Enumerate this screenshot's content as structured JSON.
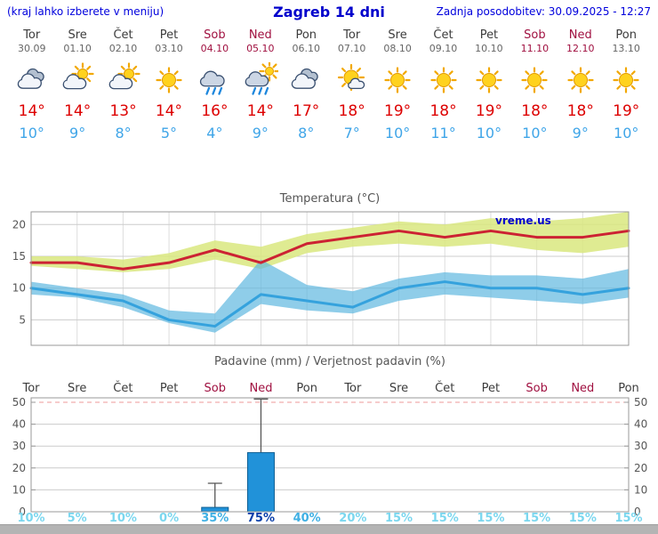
{
  "header": {
    "hint": "(kraj lahko izberete v meniju)",
    "title": "Zagreb 14 dni",
    "updated": "Zadnja posodobitev: 30.09.2025 - 12:27"
  },
  "days": [
    {
      "name": "Tor",
      "date": "30.09",
      "weekend": false,
      "icon": "cloudy",
      "tmax": "14°",
      "tmin": "10°"
    },
    {
      "name": "Sre",
      "date": "01.10",
      "weekend": false,
      "icon": "partly-cloudy",
      "tmax": "14°",
      "tmin": "9°"
    },
    {
      "name": "Čet",
      "date": "02.10",
      "weekend": false,
      "icon": "partly-cloudy",
      "tmax": "13°",
      "tmin": "8°"
    },
    {
      "name": "Pet",
      "date": "03.10",
      "weekend": false,
      "icon": "sunny",
      "tmax": "14°",
      "tmin": "5°"
    },
    {
      "name": "Sob",
      "date": "04.10",
      "weekend": true,
      "icon": "rain",
      "tmax": "16°",
      "tmin": "4°"
    },
    {
      "name": "Ned",
      "date": "05.10",
      "weekend": true,
      "icon": "rain-sun",
      "tmax": "14°",
      "tmin": "9°"
    },
    {
      "name": "Pon",
      "date": "06.10",
      "weekend": false,
      "icon": "cloudy",
      "tmax": "17°",
      "tmin": "8°"
    },
    {
      "name": "Tor",
      "date": "07.10",
      "weekend": false,
      "icon": "mostly-sunny",
      "tmax": "18°",
      "tmin": "7°"
    },
    {
      "name": "Sre",
      "date": "08.10",
      "weekend": false,
      "icon": "sunny",
      "tmax": "19°",
      "tmin": "10°"
    },
    {
      "name": "Čet",
      "date": "09.10",
      "weekend": false,
      "icon": "sunny",
      "tmax": "18°",
      "tmin": "11°"
    },
    {
      "name": "Pet",
      "date": "10.10",
      "weekend": false,
      "icon": "sunny",
      "tmax": "19°",
      "tmin": "10°"
    },
    {
      "name": "Sob",
      "date": "11.10",
      "weekend": true,
      "icon": "sunny",
      "tmax": "18°",
      "tmin": "10°"
    },
    {
      "name": "Ned",
      "date": "12.10",
      "weekend": true,
      "icon": "sunny",
      "tmax": "18°",
      "tmin": "9°"
    },
    {
      "name": "Pon",
      "date": "13.10",
      "weekend": false,
      "icon": "sunny",
      "tmax": "19°",
      "tmin": "10°"
    }
  ],
  "chart_data": [
    {
      "type": "line",
      "title": "Temperatura (°C)",
      "watermark": "vreme.us",
      "categories": [
        "Tor 30.09",
        "Sre 01.10",
        "Čet 02.10",
        "Pet 03.10",
        "Sob 04.10",
        "Ned 05.10",
        "Pon 06.10",
        "Tor 07.10",
        "Sre 08.10",
        "Čet 09.10",
        "Pet 10.10",
        "Sob 11.10",
        "Ned 12.10",
        "Pon 13.10"
      ],
      "ylim": [
        1,
        22
      ],
      "yticks": [
        5,
        10,
        15,
        20
      ],
      "series": [
        {
          "name": "max temperature",
          "color": "#cc2233",
          "values": [
            14,
            14,
            13,
            14,
            16,
            14,
            17,
            18,
            19,
            18,
            19,
            18,
            18,
            19
          ]
        },
        {
          "name": "min temperature",
          "color": "#35a2dd",
          "values": [
            10,
            9,
            8,
            5,
            4,
            9,
            8,
            7,
            10,
            11,
            10,
            10,
            9,
            10
          ]
        }
      ],
      "bands": [
        {
          "name": "max-range",
          "color": "#d9e87f",
          "opacity": 0.85,
          "upper": [
            15,
            15,
            14.5,
            15.5,
            17.5,
            16.5,
            18.5,
            19.5,
            20.5,
            20,
            21,
            20.5,
            21,
            22
          ],
          "lower": [
            13.5,
            13,
            12.5,
            13,
            14.5,
            13,
            15.5,
            16.5,
            17,
            16.5,
            17,
            16,
            15.5,
            16.5
          ]
        },
        {
          "name": "min-range",
          "color": "#5fb8e0",
          "opacity": 0.7,
          "upper": [
            11,
            10,
            9,
            6.5,
            6,
            14.5,
            10.5,
            9.5,
            11.5,
            12.5,
            12,
            12,
            11.5,
            13
          ],
          "lower": [
            9,
            8.5,
            7,
            4.5,
            3,
            7.5,
            6.5,
            6,
            8,
            9,
            8.5,
            8,
            7.5,
            8.5
          ]
        }
      ],
      "legend": "none",
      "grid": true
    },
    {
      "type": "bar",
      "title": "Padavine (mm) / Verjetnost padavin (%)",
      "categories": [
        "Tor",
        "Sre",
        "Čet",
        "Pet",
        "Sob",
        "Ned",
        "Pon",
        "Tor",
        "Sre",
        "Čet",
        "Pet",
        "Sob",
        "Ned",
        "Pon"
      ],
      "weekend_flags": [
        false,
        false,
        false,
        false,
        true,
        true,
        false,
        false,
        false,
        false,
        false,
        true,
        true,
        false
      ],
      "ylim": [
        0,
        52
      ],
      "yticks": [
        0,
        10,
        20,
        30,
        40,
        50
      ],
      "values": [
        0,
        0,
        0,
        0,
        2,
        27,
        0,
        0,
        0,
        0,
        0,
        0,
        0,
        0
      ],
      "whisker_top": [
        0,
        0,
        0,
        0,
        13,
        51.5,
        0,
        0,
        0,
        0,
        0,
        0,
        0,
        0
      ],
      "bar_color": "#2192d9",
      "bar_border": "#0d5e93",
      "probabilities": [
        {
          "text": "10%",
          "level": "low"
        },
        {
          "text": "5%",
          "level": "low"
        },
        {
          "text": "10%",
          "level": "low"
        },
        {
          "text": "0%",
          "level": "low"
        },
        {
          "text": "35%",
          "level": "mid"
        },
        {
          "text": "75%",
          "level": "high"
        },
        {
          "text": "40%",
          "level": "mid"
        },
        {
          "text": "20%",
          "level": "low"
        },
        {
          "text": "15%",
          "level": "low"
        },
        {
          "text": "15%",
          "level": "low"
        },
        {
          "text": "15%",
          "level": "low"
        },
        {
          "text": "15%",
          "level": "low"
        },
        {
          "text": "15%",
          "level": "low"
        },
        {
          "text": "15%",
          "level": "low"
        }
      ],
      "grid": true
    }
  ],
  "colors": {
    "prob_low": "#7bd7ef",
    "prob_mid": "#3fb0e4",
    "prob_high": "#0a3faa",
    "weekend": "#a01040",
    "weekday": "#3c3c3c"
  }
}
